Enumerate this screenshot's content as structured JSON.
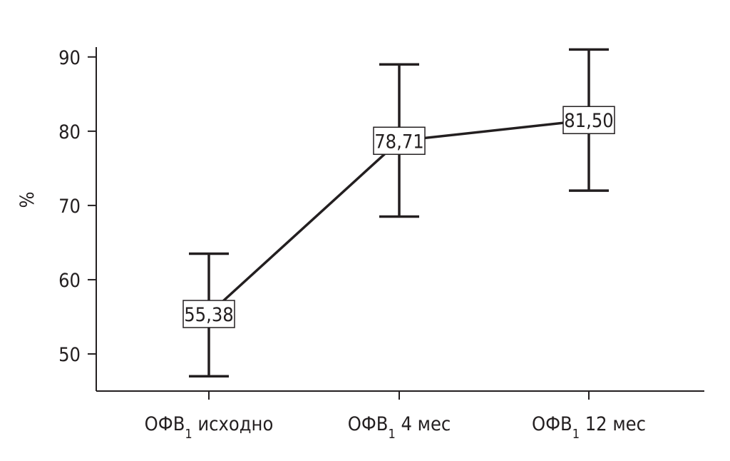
{
  "chart_data": {
    "type": "line",
    "ylabel": "%",
    "xlabel": "",
    "ylim": [
      45,
      92
    ],
    "yticks": [
      50,
      60,
      70,
      80,
      90
    ],
    "categories": [
      {
        "base": "ОФВ",
        "sub": "1",
        "suffix": " исходно"
      },
      {
        "base": "ОФВ",
        "sub": "1",
        "suffix": " 4 мес"
      },
      {
        "base": "ОФВ",
        "sub": "1",
        "suffix": " 12 мес"
      }
    ],
    "values": [
      55.38,
      78.71,
      81.5
    ],
    "value_labels": [
      "55,38",
      "78,71",
      "81,50"
    ],
    "error_low": [
      47.0,
      68.5,
      72.0
    ],
    "error_high": [
      63.5,
      89.0,
      91.0
    ],
    "grid": false,
    "legend": "none",
    "colors": {
      "ink": "#231f20",
      "background": "#ffffff"
    }
  }
}
